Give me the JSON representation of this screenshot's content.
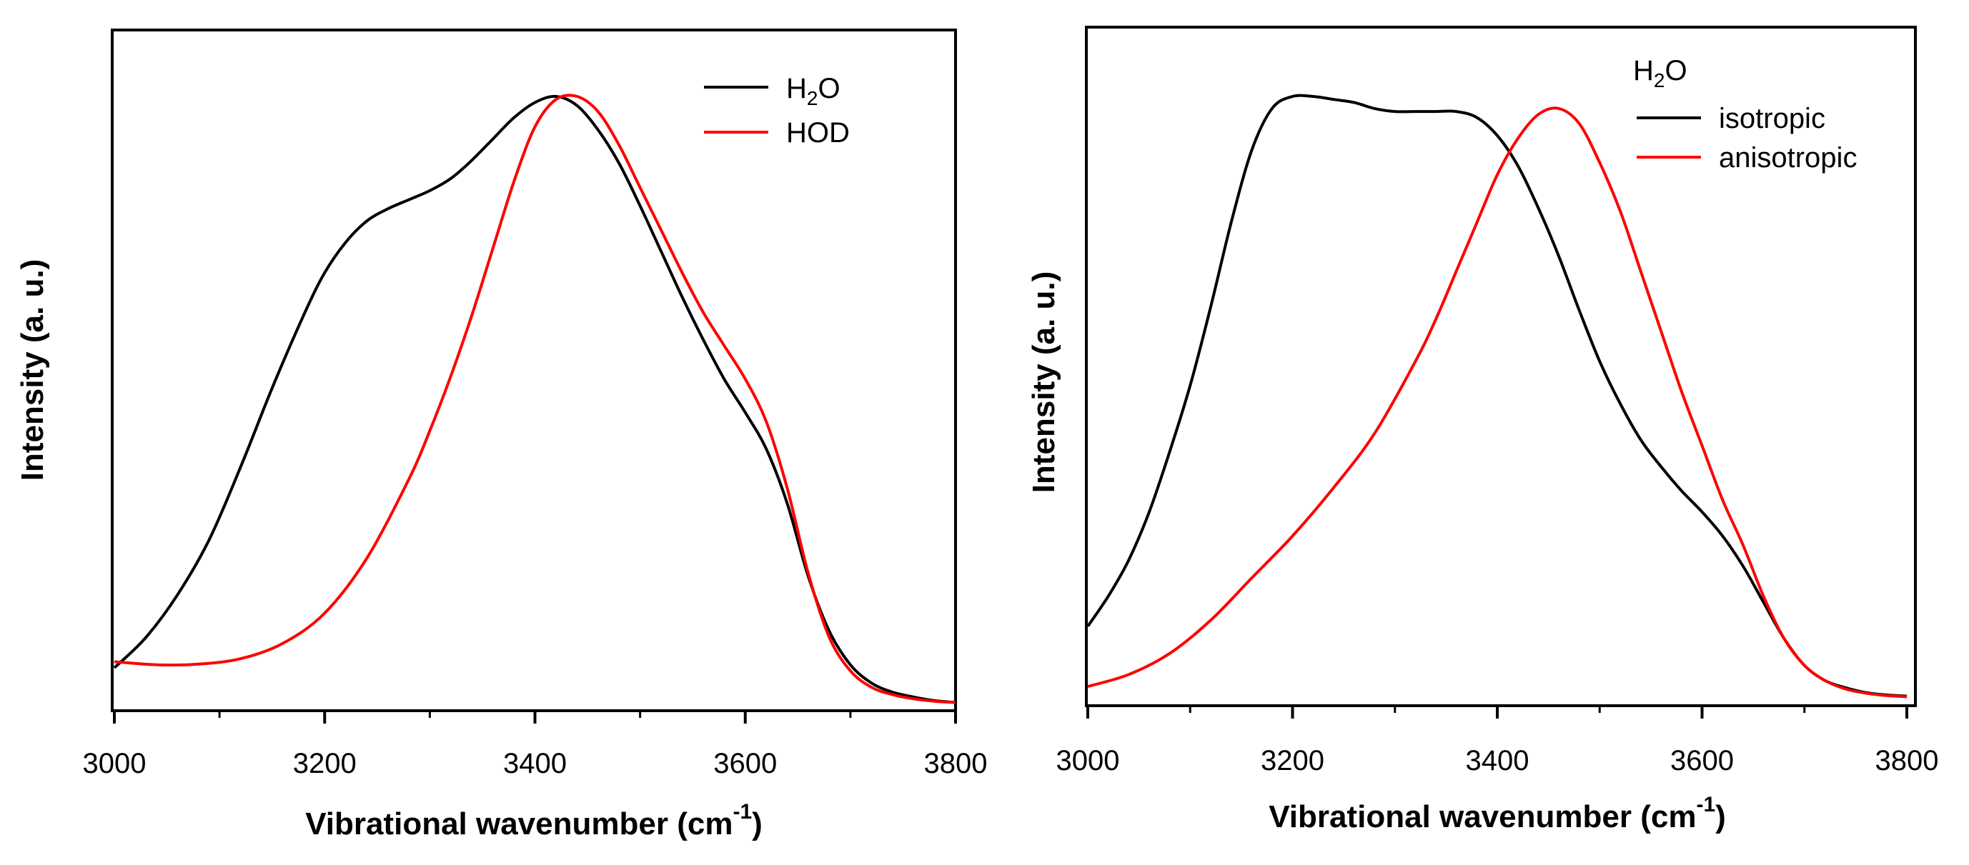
{
  "chart_data": [
    {
      "type": "line",
      "xlabel": "Vibrational wavenumber (cm",
      "xlabel_superscript": "-1",
      "xlabel_suffix": ")",
      "ylabel": "Intensity (a. u.)",
      "xlim": [
        3000,
        3800
      ],
      "ylim": [
        0,
        1
      ],
      "xticks": [
        3000,
        3200,
        3400,
        3600,
        3800
      ],
      "y_tick_labels": false,
      "grid": false,
      "legend_title": null,
      "legend_position": "top-right",
      "series": [
        {
          "name": "H2O",
          "name_parts": [
            "H",
            "2",
            "O"
          ],
          "color": "#000000",
          "x": [
            3000,
            3030,
            3060,
            3090,
            3120,
            3150,
            3180,
            3200,
            3220,
            3240,
            3260,
            3280,
            3300,
            3320,
            3340,
            3360,
            3380,
            3400,
            3420,
            3440,
            3460,
            3480,
            3500,
            3520,
            3540,
            3560,
            3580,
            3600,
            3620,
            3640,
            3660,
            3680,
            3700,
            3720,
            3740,
            3760,
            3780,
            3800
          ],
          "y": [
            0.06,
            0.11,
            0.18,
            0.27,
            0.39,
            0.52,
            0.64,
            0.71,
            0.76,
            0.795,
            0.815,
            0.83,
            0.845,
            0.865,
            0.895,
            0.93,
            0.965,
            0.99,
            1.0,
            0.985,
            0.945,
            0.89,
            0.82,
            0.745,
            0.67,
            0.6,
            0.535,
            0.48,
            0.42,
            0.33,
            0.21,
            0.12,
            0.065,
            0.035,
            0.02,
            0.012,
            0.006,
            0.003
          ]
        },
        {
          "name": "HOD",
          "color": "#ff0000",
          "x": [
            3000,
            3040,
            3080,
            3120,
            3160,
            3200,
            3240,
            3280,
            3300,
            3320,
            3340,
            3360,
            3380,
            3400,
            3420,
            3440,
            3460,
            3480,
            3500,
            3520,
            3540,
            3560,
            3580,
            3600,
            3620,
            3640,
            3660,
            3680,
            3700,
            3720,
            3740,
            3760,
            3780,
            3800
          ],
          "y": [
            0.07,
            0.065,
            0.066,
            0.075,
            0.1,
            0.15,
            0.24,
            0.37,
            0.45,
            0.54,
            0.64,
            0.75,
            0.86,
            0.95,
            0.995,
            1.0,
            0.975,
            0.92,
            0.85,
            0.78,
            0.71,
            0.645,
            0.59,
            0.535,
            0.465,
            0.355,
            0.215,
            0.11,
            0.055,
            0.028,
            0.016,
            0.009,
            0.005,
            0.003
          ]
        }
      ]
    },
    {
      "type": "line",
      "xlabel": "Vibrational wavenumber (cm",
      "xlabel_superscript": "-1",
      "xlabel_suffix": ")",
      "ylabel": "Intensity (a. u.)",
      "xlim": [
        3000,
        3800
      ],
      "ylim": [
        0,
        1
      ],
      "xticks": [
        3000,
        3200,
        3400,
        3600,
        3800
      ],
      "y_tick_labels": false,
      "grid": false,
      "legend_title": "H2O",
      "legend_title_parts": [
        "H",
        "2",
        "O"
      ],
      "legend_position": "top-right",
      "series": [
        {
          "name": "isotropic",
          "color": "#000000",
          "x": [
            3000,
            3020,
            3040,
            3060,
            3080,
            3100,
            3120,
            3140,
            3160,
            3180,
            3200,
            3220,
            3240,
            3260,
            3280,
            3300,
            3320,
            3340,
            3360,
            3380,
            3400,
            3420,
            3440,
            3460,
            3480,
            3500,
            3520,
            3540,
            3560,
            3580,
            3600,
            3620,
            3640,
            3660,
            3680,
            3700,
            3720,
            3740,
            3760,
            3780,
            3800
          ],
          "y": [
            0.12,
            0.17,
            0.23,
            0.31,
            0.41,
            0.52,
            0.65,
            0.79,
            0.91,
            0.98,
            1.0,
            1.0,
            0.995,
            0.99,
            0.98,
            0.975,
            0.975,
            0.975,
            0.975,
            0.965,
            0.935,
            0.885,
            0.815,
            0.735,
            0.645,
            0.56,
            0.49,
            0.43,
            0.385,
            0.345,
            0.31,
            0.27,
            0.22,
            0.16,
            0.1,
            0.055,
            0.03,
            0.018,
            0.01,
            0.006,
            0.004
          ]
        },
        {
          "name": "anisotropic",
          "color": "#ff0000",
          "x": [
            3000,
            3040,
            3080,
            3120,
            3160,
            3200,
            3240,
            3280,
            3320,
            3340,
            3360,
            3380,
            3400,
            3420,
            3440,
            3460,
            3480,
            3500,
            3520,
            3540,
            3560,
            3580,
            3600,
            3620,
            3640,
            3660,
            3680,
            3700,
            3720,
            3740,
            3760,
            3780,
            3800
          ],
          "y": [
            0.02,
            0.04,
            0.075,
            0.13,
            0.2,
            0.27,
            0.35,
            0.44,
            0.56,
            0.63,
            0.71,
            0.79,
            0.87,
            0.93,
            0.97,
            0.98,
            0.955,
            0.89,
            0.81,
            0.71,
            0.61,
            0.51,
            0.42,
            0.33,
            0.255,
            0.17,
            0.1,
            0.055,
            0.03,
            0.016,
            0.009,
            0.005,
            0.003
          ]
        }
      ]
    }
  ]
}
